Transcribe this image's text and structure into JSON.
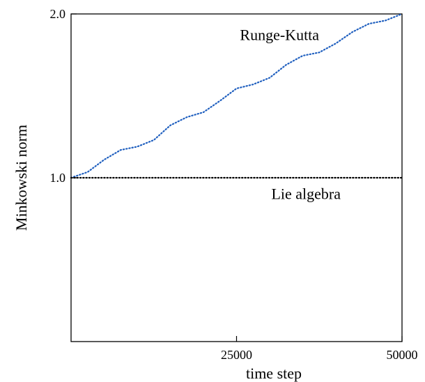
{
  "chart_data": {
    "type": "line",
    "title": "",
    "xlabel": "time step",
    "ylabel": "Minkowski norm",
    "xlim": [
      0,
      50000
    ],
    "ylim": [
      0,
      2.0
    ],
    "x_ticks": [
      {
        "value": 25000,
        "label": "25000"
      },
      {
        "value": 50000,
        "label": "50000"
      }
    ],
    "y_ticks": [
      {
        "value": 1.0,
        "label": "1.0"
      },
      {
        "value": 2.0,
        "label": "2.0"
      }
    ],
    "grid": false,
    "series": [
      {
        "name": "Runge-Kutta",
        "color": "#1f5fbf",
        "style": "dotted",
        "x": [
          0,
          2500,
          5000,
          7500,
          10000,
          12500,
          15000,
          17500,
          20000,
          22500,
          25000,
          27500,
          30000,
          32500,
          35000,
          37500,
          40000,
          42500,
          45000,
          47500,
          50000
        ],
        "y": [
          1.0,
          1.035,
          1.11,
          1.17,
          1.19,
          1.23,
          1.32,
          1.37,
          1.4,
          1.47,
          1.545,
          1.57,
          1.61,
          1.69,
          1.745,
          1.765,
          1.82,
          1.89,
          1.94,
          1.96,
          2.0
        ]
      },
      {
        "name": "Lie algebra",
        "color": "#000000",
        "style": "dotted",
        "x": [
          0,
          50000
        ],
        "y": [
          1.0,
          1.0
        ]
      }
    ],
    "annotations": [
      {
        "text": "Runge-Kutta",
        "x": 31500,
        "y": 1.84
      },
      {
        "text": "Lie algebra",
        "x": 35500,
        "y": 0.87
      }
    ]
  }
}
